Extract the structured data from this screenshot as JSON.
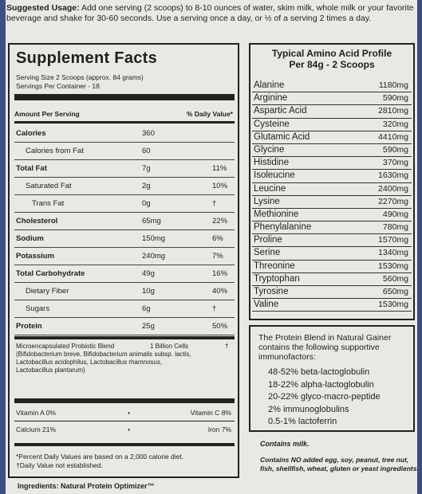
{
  "usage": {
    "label": "Suggested Usage:",
    "text": "Add one serving (2 scoops) to 8-10 ounces of water, skim milk, whole milk or your favorite beverage and shake for 30-60 seconds. Use a serving once a day, or ½ of a serving 2 times a day."
  },
  "facts": {
    "title": "Supplement Facts",
    "serving_size": "Serving Size 2 Scoops (approx. 84 grams)",
    "servings_per_container": "Servings Per Container - 18",
    "amount_header": "Amount Per Serving",
    "dv_header": "% Daily Value*",
    "rows": [
      {
        "name": "Calories",
        "amount": "360",
        "dv": ""
      },
      {
        "name": "Calories from Fat",
        "amount": "60",
        "dv": ""
      },
      {
        "name": "Total Fat",
        "amount": "7g",
        "dv": "11%"
      },
      {
        "name": "Saturated Fat",
        "amount": "2g",
        "dv": "10%"
      },
      {
        "name": "Trans Fat",
        "amount": "0g",
        "dv": "†"
      },
      {
        "name": "Cholesterol",
        "amount": "65mg",
        "dv": "22%"
      },
      {
        "name": "Sodium",
        "amount": "150mg",
        "dv": "6%"
      },
      {
        "name": "Potassium",
        "amount": "240mg",
        "dv": "7%"
      },
      {
        "name": "Total Carbohydrate",
        "amount": "49g",
        "dv": "16%"
      },
      {
        "name": "Dietary Fiber",
        "amount": "10g",
        "dv": "40%"
      },
      {
        "name": "Sugars",
        "amount": "6g",
        "dv": "†"
      },
      {
        "name": "Protein",
        "amount": "25g",
        "dv": "50%"
      }
    ],
    "probiotic": {
      "name": "Microencapsulated Probiotic Blend",
      "amount": "1 Billion Cells",
      "dv": "†",
      "detail": "(Bifidobacterium breve, Bifidobacterium animalis subsp. lactis, Lactobacillus acidophilus, Lactobacillus rhamnosus, Lactobacillus plantarum)"
    },
    "vitamins": [
      {
        "left": "Vitamin A 0%",
        "right": "Vitamin C 8%"
      },
      {
        "left": "Calcium 21%",
        "right": "Iron 7%"
      }
    ],
    "footnote1": "*Percent Daily Values are based on a 2,000 calorie diet.",
    "footnote2": "†Daily Value not established."
  },
  "amino": {
    "title_line1": "Typical Amino Acid Profile",
    "title_line2": "Per 84g - 2 Scoops",
    "rows": [
      {
        "name": "Alanine",
        "value": "1180mg"
      },
      {
        "name": "Arginine",
        "value": "590mg"
      },
      {
        "name": "Aspartic Acid",
        "value": "2810mg"
      },
      {
        "name": "Cysteine",
        "value": "320mg"
      },
      {
        "name": "Glutamic Acid",
        "value": "4410mg"
      },
      {
        "name": "Glycine",
        "value": "590mg"
      },
      {
        "name": "Histidine",
        "value": "370mg"
      },
      {
        "name": "Isoleucine",
        "value": "1630mg"
      },
      {
        "name": "Leucine",
        "value": "2400mg"
      },
      {
        "name": "Lysine",
        "value": "2270mg"
      },
      {
        "name": "Methionine",
        "value": "490mg"
      },
      {
        "name": "Phenylalanine",
        "value": "780mg"
      },
      {
        "name": "Proline",
        "value": "1570mg"
      },
      {
        "name": "Serine",
        "value": "1340mg"
      },
      {
        "name": "Threonine",
        "value": "1530mg"
      },
      {
        "name": "Tryptophan",
        "value": "560mg"
      },
      {
        "name": "Tyrosine",
        "value": "650mg"
      },
      {
        "name": "Valine",
        "value": "1530mg"
      }
    ]
  },
  "blend": {
    "intro": "The Protein Blend in Natural Gainer contains the following supportive immunofactors:",
    "items": [
      "48-52% beta-lactoglobulin",
      "18-22% alpha-lactoglobulin",
      "20-22% glyco-macro-peptide",
      "2% immunoglobulins",
      "0.5-1% lactoferrin"
    ]
  },
  "contains_milk": "Contains milk.",
  "contains_no": "Contains NO added egg, soy, peanut, tree nut, fish, shellfish, wheat, gluten or yeast ingredients.",
  "ingredients": "Ingredients: Natural Protein Optimizer™"
}
